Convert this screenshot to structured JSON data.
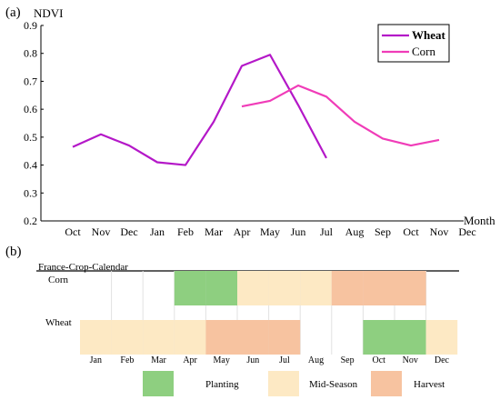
{
  "panel_a_label": "(a)",
  "panel_b_label": "(b)",
  "chart_data": [
    {
      "type": "line",
      "ylabel": "NDVI",
      "xlabel": "Month",
      "ylim": [
        0.2,
        0.9
      ],
      "yticks": [
        "0.2",
        "0.3",
        "0.4",
        "0.5",
        "0.6",
        "0.7",
        "0.8",
        "0.9"
      ],
      "categories": [
        "Oct",
        "Nov",
        "Dec",
        "Jan",
        "Feb",
        "Mar",
        "Apr",
        "May",
        "Jun",
        "Jul",
        "Aug",
        "Sep",
        "Oct",
        "Nov",
        "Dec"
      ],
      "grid": false,
      "legend": "top-right",
      "series": [
        {
          "name": "Wheat",
          "color": "#b418c8",
          "values": [
            0.465,
            0.51,
            0.47,
            0.41,
            0.4,
            0.555,
            0.755,
            0.795,
            0.615,
            0.425,
            null,
            null,
            null,
            null,
            null
          ]
        },
        {
          "name": "Corn",
          "color": "#f03cb8",
          "values": [
            null,
            null,
            null,
            null,
            null,
            null,
            0.61,
            0.63,
            0.685,
            0.645,
            0.555,
            0.495,
            0.47,
            0.49,
            null
          ]
        }
      ]
    },
    {
      "type": "table",
      "title": "France-Crop-Calendar",
      "months": [
        "Jan",
        "Feb",
        "Mar",
        "Apr",
        "May",
        "Jun",
        "Jul",
        "Aug",
        "Sep",
        "Oct",
        "Nov",
        "Dec"
      ],
      "rows": [
        {
          "crop": "Corn",
          "cells": [
            "",
            "",
            "",
            "Planting",
            "Planting",
            "Mid-Season",
            "Mid-Season",
            "Mid-Season",
            "Harvest",
            "Harvest",
            "Harvest",
            ""
          ]
        },
        {
          "crop": "Wheat",
          "cells": [
            "Mid-Season",
            "Mid-Season",
            "Mid-Season",
            "Mid-Season",
            "Harvest",
            "Harvest",
            "Harvest",
            "",
            "",
            "Planting",
            "Planting",
            "Mid-Season"
          ]
        }
      ],
      "legend": [
        {
          "label": "Planting",
          "color": "#8ecf80"
        },
        {
          "label": "Mid-Season",
          "color": "#fde9c4"
        },
        {
          "label": "Harvest",
          "color": "#f7c3a0"
        }
      ]
    }
  ]
}
